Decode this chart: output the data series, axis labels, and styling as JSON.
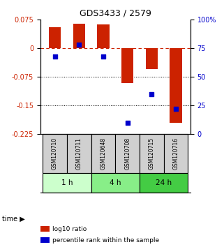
{
  "title": "GDS3433 / 2579",
  "samples": [
    "GSM120710",
    "GSM120711",
    "GSM120648",
    "GSM120708",
    "GSM120715",
    "GSM120716"
  ],
  "log10_ratio": [
    0.055,
    0.065,
    0.063,
    -0.092,
    -0.055,
    -0.195
  ],
  "percentile_rank": [
    68,
    78,
    68,
    10,
    35,
    22
  ],
  "bar_color": "#cc2200",
  "dot_color": "#0000cc",
  "left_ylim": [
    -0.225,
    0.075
  ],
  "right_ylim": [
    0,
    100
  ],
  "left_yticks": [
    0.075,
    0,
    -0.075,
    -0.15,
    -0.225
  ],
  "right_yticks": [
    100,
    75,
    50,
    25,
    0
  ],
  "right_yticklabels": [
    "100%",
    "75",
    "50",
    "25",
    "0"
  ],
  "hline_y": 0,
  "dotted_lines": [
    -0.075,
    -0.15
  ],
  "time_groups": [
    {
      "label": "1 h",
      "cols": [
        0,
        1
      ],
      "color": "#ccffcc"
    },
    {
      "label": "4 h",
      "cols": [
        2,
        3
      ],
      "color": "#88ee88"
    },
    {
      "label": "24 h",
      "cols": [
        4,
        5
      ],
      "color": "#44cc44"
    }
  ],
  "legend_items": [
    {
      "label": "log10 ratio",
      "color": "#cc2200"
    },
    {
      "label": "percentile rank within the sample",
      "color": "#0000cc"
    }
  ],
  "time_label": "time",
  "fig_width": 3.21,
  "fig_height": 3.54,
  "dpi": 100
}
